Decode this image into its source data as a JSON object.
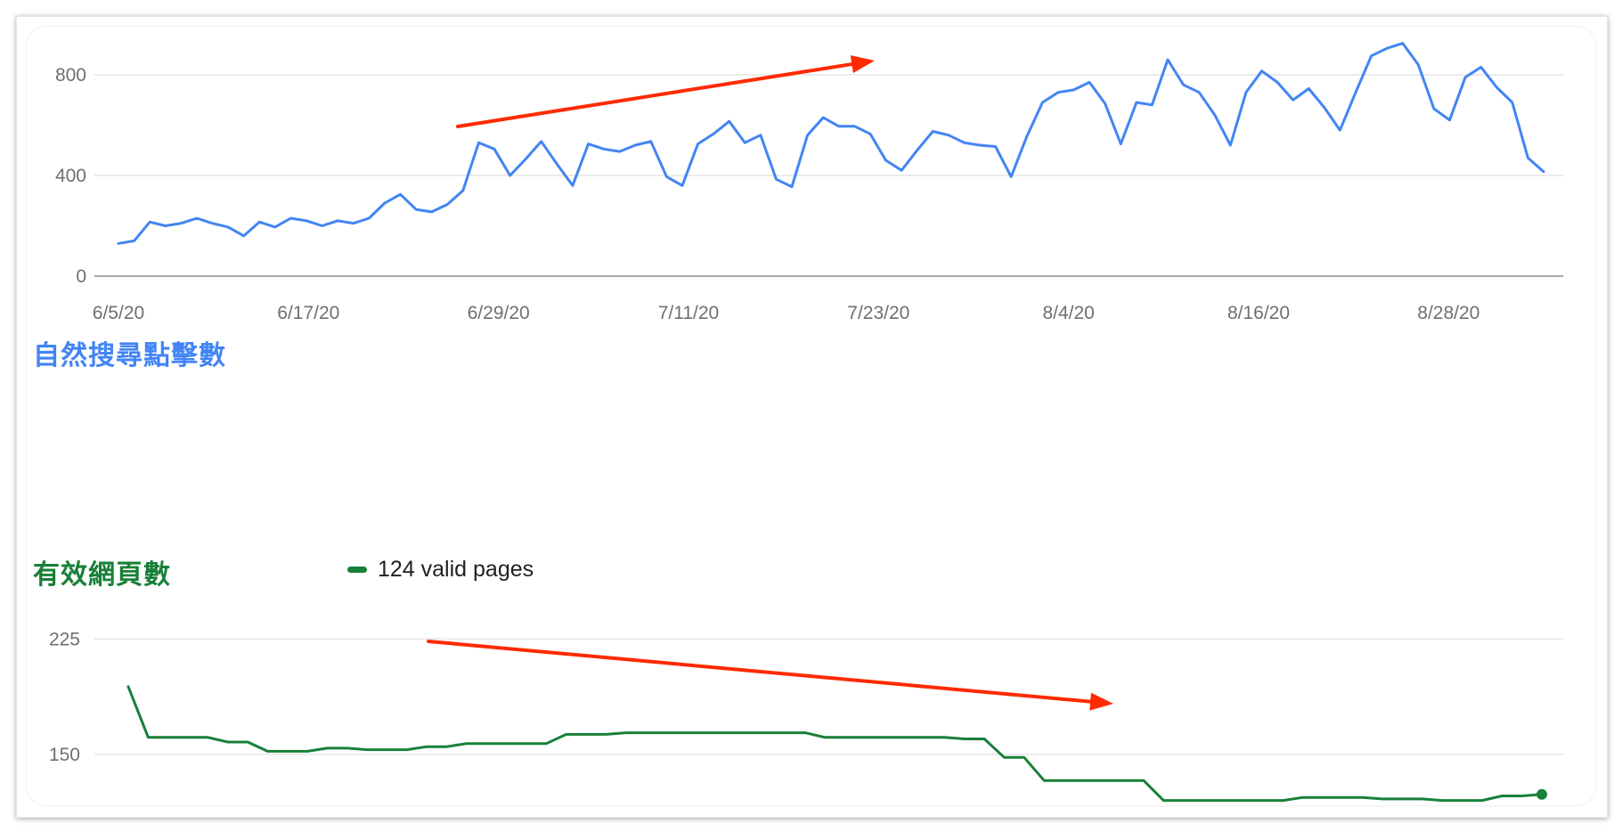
{
  "colors": {
    "clicks": "#4285f4",
    "pages": "#188038",
    "arrow": "#ff2a00"
  },
  "chart_data": [
    {
      "type": "line",
      "title": "自然搜尋點擊數",
      "x_start": "6/5/20",
      "x_end": "9/3/20",
      "x_ticks": [
        "6/5/20",
        "6/17/20",
        "6/29/20",
        "7/11/20",
        "7/23/20",
        "8/4/20",
        "8/16/20",
        "8/28/20"
      ],
      "y_ticks": [
        0,
        400,
        800
      ],
      "ylim": [
        0,
        920
      ],
      "grid": true,
      "annotation": "red arrow pointing up-right (upward trend)",
      "series": [
        {
          "values": [
            130,
            140,
            215,
            200,
            210,
            230,
            210,
            195,
            160,
            215,
            195,
            230,
            220,
            200,
            220,
            210,
            230,
            290,
            325,
            265,
            255,
            285,
            340,
            530,
            505,
            400,
            465,
            535,
            445,
            360,
            525,
            505,
            495,
            520,
            535,
            395,
            360,
            525,
            565,
            615,
            530,
            560,
            385,
            355,
            560,
            630,
            595,
            595,
            565,
            460,
            420,
            500,
            575,
            560,
            530,
            520,
            515,
            395,
            555,
            690,
            730,
            740,
            770,
            685,
            525,
            690,
            680,
            860,
            760,
            730,
            640,
            520,
            730,
            815,
            770,
            700,
            745,
            670,
            580,
            730,
            875,
            905,
            925,
            840,
            665,
            620,
            790,
            830,
            750,
            690,
            470,
            415
          ]
        }
      ]
    },
    {
      "type": "line",
      "title": "有效網頁數",
      "x_start": "6/5/20",
      "x_end": "9/3/20",
      "y_ticks": [
        150,
        225
      ],
      "ylim": [
        125,
        235
      ],
      "grid": true,
      "legend": "124 valid pages",
      "legend_position": "top-left",
      "annotation": "red arrow pointing down-right (downward trend)",
      "series": [
        {
          "name": "124 valid pages",
          "values": [
            194,
            161,
            161,
            161,
            161,
            158,
            158,
            152,
            152,
            152,
            154,
            154,
            153,
            153,
            153,
            155,
            155,
            157,
            157,
            157,
            157,
            157,
            163,
            163,
            163,
            164,
            164,
            164,
            164,
            164,
            164,
            164,
            164,
            164,
            164,
            161,
            161,
            161,
            161,
            161,
            161,
            161,
            160,
            160,
            148,
            148,
            133,
            133,
            133,
            133,
            133,
            133,
            120,
            120,
            120,
            120,
            120,
            120,
            120,
            122,
            122,
            122,
            122,
            121,
            121,
            121,
            120,
            120,
            120,
            123,
            123,
            124
          ]
        }
      ]
    }
  ]
}
